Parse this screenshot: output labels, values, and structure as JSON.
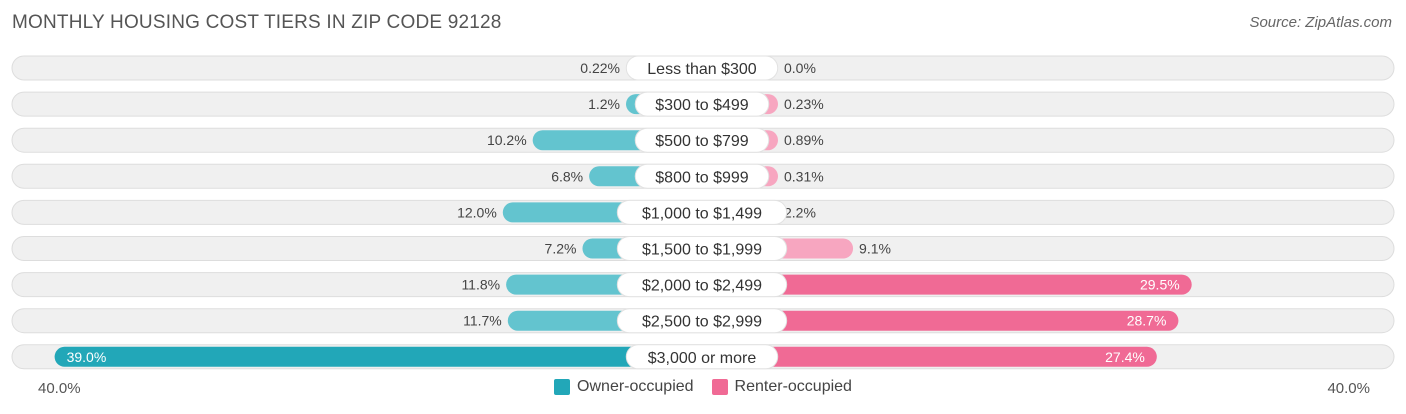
{
  "header": {
    "title": "MONTHLY HOUSING COST TIERS IN ZIP CODE 92128",
    "source": "Source: ZipAtlas.com"
  },
  "colors": {
    "owner": "#63c4cf",
    "owner_strong": "#22a7b8",
    "renter": "#f7a6c0",
    "renter_strong": "#f06a95",
    "track": "#f0f0f0",
    "track_border": "#dddddd"
  },
  "chart_data": {
    "type": "bar",
    "orientation": "horizontal-diverging",
    "title": "MONTHLY HOUSING COST TIERS IN ZIP CODE 92128",
    "categories": [
      "Less than $300",
      "$300 to $499",
      "$500 to $799",
      "$800 to $999",
      "$1,000 to $1,499",
      "$1,500 to $1,999",
      "$2,000 to $2,499",
      "$2,500 to $2,999",
      "$3,000 or more"
    ],
    "series": [
      {
        "name": "Owner-occupied",
        "values": [
          0.22,
          1.2,
          10.2,
          6.8,
          12.0,
          7.2,
          11.8,
          11.7,
          39.0
        ],
        "labels": [
          "0.22%",
          "1.2%",
          "10.2%",
          "6.8%",
          "12.0%",
          "7.2%",
          "11.8%",
          "11.7%",
          "39.0%"
        ]
      },
      {
        "name": "Renter-occupied",
        "values": [
          0.0,
          0.23,
          0.89,
          0.31,
          2.2,
          9.1,
          29.5,
          28.7,
          27.4
        ],
        "labels": [
          "0.0%",
          "0.23%",
          "0.89%",
          "0.31%",
          "2.2%",
          "9.1%",
          "29.5%",
          "28.7%",
          "27.4%"
        ]
      }
    ],
    "xlim": [
      -40,
      40
    ],
    "axis_labels": {
      "left": "40.0%",
      "right": "40.0%"
    },
    "legend_position": "bottom-center"
  }
}
